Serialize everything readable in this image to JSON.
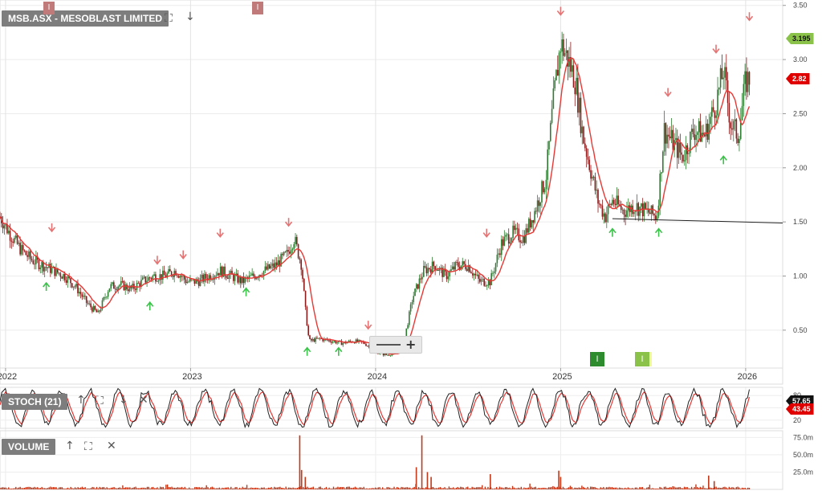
{
  "header": {
    "title": "MSB.ASX - MESOBLAST LIMITED",
    "event_marker_label": "I"
  },
  "panels": {
    "stoch": {
      "label": "STOCH (21)"
    },
    "volume": {
      "label": "VOLUME"
    }
  },
  "markers": {
    "buy_flag_1": "I",
    "buy_flag_2": "I"
  },
  "price_flags": {
    "last": "3.195",
    "ma": "2.82",
    "stoch_k": "57.65",
    "stoch_d": "43.45"
  },
  "colors": {
    "candle_up": "#2e7d32",
    "candle_down": "#8b1a1a",
    "ma_line": "#e53935",
    "buy_arrow": "#3cc24a",
    "sell_arrow": "#e57373",
    "volume": "#c0391b",
    "last_flag": "#8bc34a",
    "ma_flag": "#e00000"
  },
  "icons": [
    "fullscreen-icon",
    "arrow-down-icon",
    "arrow-up-icon",
    "close-icon"
  ],
  "chart_data": {
    "type": "line",
    "price_axis": {
      "ylim": [
        0.15,
        3.55
      ],
      "ticks": [
        "0.50",
        "1.00",
        "1.50",
        "2.00",
        "2.50",
        "3.00",
        "3.50"
      ],
      "tick_values": [
        0.5,
        1.0,
        1.5,
        2.0,
        2.5,
        3.0,
        3.5
      ]
    },
    "x_axis": {
      "ticks": [
        "2022",
        "2023",
        "2024",
        "2025",
        "2026"
      ],
      "tick_values": [
        2022.0,
        2023.0,
        2024.0,
        2025.0,
        2026.0
      ],
      "xlim": [
        2021.97,
        2026.2
      ]
    },
    "series": [
      {
        "x": [
          2021.97,
          2022.02,
          2022.08,
          2022.14,
          2022.2,
          2022.26,
          2022.32,
          2022.38,
          2022.44,
          2022.5,
          2022.56,
          2022.62,
          2022.68,
          2022.74,
          2022.8,
          2022.86,
          2022.92,
          2022.98,
          2023.04,
          2023.1,
          2023.16,
          2023.22,
          2023.28,
          2023.34,
          2023.4,
          2023.46,
          2023.52,
          2023.56,
          2023.6,
          2023.62,
          2023.64,
          2023.7,
          2023.76,
          2023.82,
          2023.88,
          2023.94,
          2024.0,
          2024.06,
          2024.12,
          2024.16,
          2024.2,
          2024.26,
          2024.32,
          2024.38,
          2024.44,
          2024.5,
          2024.56,
          2024.62,
          2024.68,
          2024.74,
          2024.8,
          2024.86,
          2024.92,
          2024.96,
          2025.0,
          2025.04,
          2025.08,
          2025.12,
          2025.16,
          2025.2,
          2025.24,
          2025.28,
          2025.34,
          2025.4,
          2025.46,
          2025.52,
          2025.56,
          2025.6,
          2025.66,
          2025.72,
          2025.78,
          2025.84,
          2025.88,
          2025.92,
          2025.96,
          2026.0,
          2026.02
        ],
        "values": [
          1.55,
          1.4,
          1.25,
          1.15,
          1.1,
          1.05,
          1.0,
          0.9,
          0.75,
          0.65,
          0.9,
          0.92,
          0.88,
          0.95,
          1.0,
          1.0,
          1.05,
          0.95,
          0.95,
          1.0,
          1.05,
          1.0,
          0.95,
          1.0,
          1.05,
          1.1,
          1.2,
          1.35,
          1.1,
          0.7,
          0.4,
          0.42,
          0.4,
          0.38,
          0.4,
          0.38,
          0.3,
          0.27,
          0.3,
          0.45,
          0.8,
          1.05,
          1.1,
          1.0,
          1.1,
          1.1,
          0.95,
          0.95,
          1.3,
          1.4,
          1.35,
          1.6,
          1.9,
          2.6,
          3.15,
          3.0,
          2.8,
          2.3,
          2.0,
          1.7,
          1.55,
          1.7,
          1.6,
          1.65,
          1.6,
          1.55,
          2.35,
          2.25,
          2.1,
          2.35,
          2.3,
          2.6,
          2.9,
          2.4,
          2.3,
          2.8,
          2.82
        ]
      }
    ],
    "support_line": {
      "x": [
        2025.28,
        2026.2
      ],
      "y": [
        1.53,
        1.49
      ]
    },
    "buy_signals": [
      {
        "x": 2022.22,
        "y": 0.9
      },
      {
        "x": 2022.78,
        "y": 0.72
      },
      {
        "x": 2023.3,
        "y": 0.85
      },
      {
        "x": 2023.63,
        "y": 0.3
      },
      {
        "x": 2023.8,
        "y": 0.3
      },
      {
        "x": 2025.28,
        "y": 1.4
      },
      {
        "x": 2025.53,
        "y": 1.4
      },
      {
        "x": 2025.88,
        "y": 2.07
      }
    ],
    "sell_signals": [
      {
        "x": 2022.25,
        "y": 1.45
      },
      {
        "x": 2022.82,
        "y": 1.15
      },
      {
        "x": 2022.96,
        "y": 1.2
      },
      {
        "x": 2023.16,
        "y": 1.4
      },
      {
        "x": 2023.53,
        "y": 1.5
      },
      {
        "x": 2023.96,
        "y": 0.55
      },
      {
        "x": 2024.6,
        "y": 1.4
      },
      {
        "x": 2025.0,
        "y": 3.45
      },
      {
        "x": 2025.58,
        "y": 2.7
      },
      {
        "x": 2025.84,
        "y": 3.1
      },
      {
        "x": 2026.02,
        "y": 3.4
      }
    ],
    "stoch": {
      "ylim": [
        0,
        100
      ],
      "ticks": [
        "20",
        "50",
        "80"
      ],
      "tick_values": [
        20,
        50,
        80
      ]
    },
    "volume": {
      "ylim": [
        0,
        80
      ],
      "ticks": [
        "25.0m",
        "50.0m",
        "75.0m"
      ],
      "tick_values": [
        25,
        50,
        75
      ],
      "spikes": [
        {
          "x": 2023.59,
          "value": 78
        },
        {
          "x": 2023.6,
          "value": 28
        },
        {
          "x": 2023.62,
          "value": 18
        },
        {
          "x": 2024.25,
          "value": 78
        },
        {
          "x": 2024.22,
          "value": 32
        },
        {
          "x": 2024.28,
          "value": 25
        },
        {
          "x": 2024.3,
          "value": 18
        },
        {
          "x": 2024.62,
          "value": 22
        },
        {
          "x": 2024.99,
          "value": 27
        },
        {
          "x": 2025.0,
          "value": 18
        },
        {
          "x": 2025.8,
          "value": 20
        },
        {
          "x": 2025.83,
          "value": 12
        }
      ]
    }
  }
}
